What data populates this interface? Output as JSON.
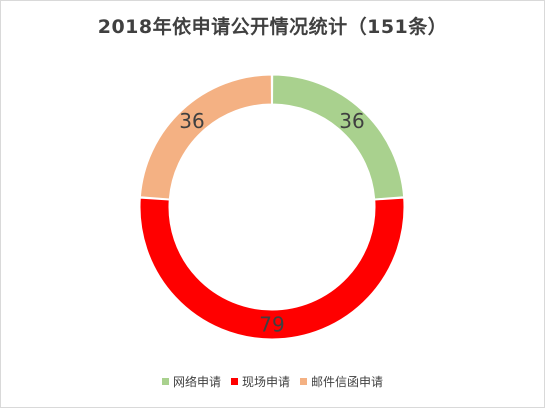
{
  "chart_data": {
    "type": "pie",
    "variant": "donut",
    "title": "2018年依申请公开情况统计（151条）",
    "categories": [
      "网络申请",
      "现场申请",
      "邮件信函申请"
    ],
    "values": [
      36,
      79,
      36
    ],
    "colors": [
      "#a9d18e",
      "#ff0000",
      "#f4b183"
    ],
    "data_labels": [
      "36",
      "79",
      "36"
    ],
    "legend_placement": "bottom",
    "start_angle_deg": 0,
    "direction": "clockwise"
  }
}
